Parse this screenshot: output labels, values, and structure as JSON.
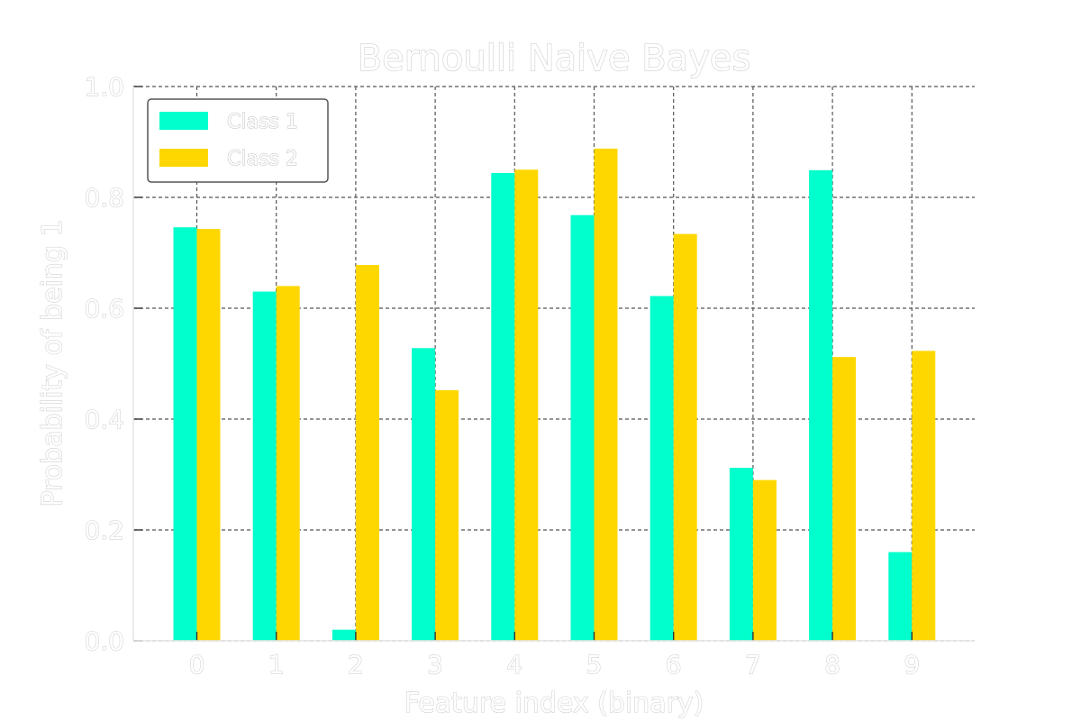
{
  "chart_data": {
    "type": "bar",
    "title": "Bernoulli Naive Bayes",
    "xlabel": "Feature index (binary)",
    "ylabel": "Probability of being 1",
    "categories": [
      "0",
      "1",
      "2",
      "3",
      "4",
      "5",
      "6",
      "7",
      "8",
      "9"
    ],
    "series": [
      {
        "name": "Class 1",
        "color": "#00ffcc",
        "values": [
          0.746,
          0.63,
          0.02,
          0.528,
          0.844,
          0.768,
          0.622,
          0.312,
          0.849,
          0.16
        ]
      },
      {
        "name": "Class 2",
        "color": "#ffd700",
        "values": [
          0.743,
          0.64,
          0.678,
          0.452,
          0.85,
          0.888,
          0.734,
          0.29,
          0.512,
          0.523
        ]
      }
    ],
    "ylim": [
      0,
      1.0
    ],
    "yticks": [
      "0.0",
      "0.2",
      "0.4",
      "0.6",
      "0.8",
      "1.0"
    ],
    "grid": true,
    "legend_position": "top-left"
  }
}
